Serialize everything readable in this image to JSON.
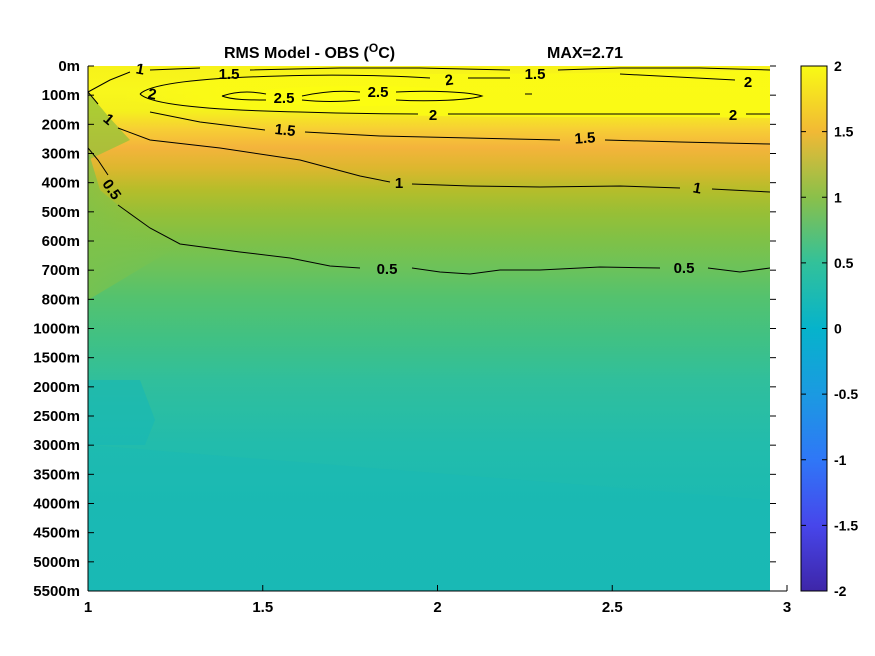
{
  "chart_data": {
    "type": "heatmap",
    "title": "RMS Model - OBS (",
    "title_unit": "O",
    "title_suffix": "C)",
    "max_label": "MAX=2.71",
    "xlim": [
      1,
      3
    ],
    "x_ticks": [
      "1",
      "1.5",
      "2",
      "2.5",
      "3"
    ],
    "x_tick_values": [
      1,
      1.5,
      2,
      2.5,
      3
    ],
    "y_ticks": [
      "0m",
      "100m",
      "200m",
      "300m",
      "400m",
      "500m",
      "600m",
      "700m",
      "800m",
      "1000m",
      "1500m",
      "2000m",
      "2500m",
      "3000m",
      "3500m",
      "4000m",
      "4500m",
      "5000m",
      "5500m"
    ],
    "colorbar": {
      "range": [
        -2,
        2
      ],
      "ticks": [
        "2",
        "1.5",
        "1",
        "0.5",
        "0",
        "-0.5",
        "-1",
        "-1.5",
        "-2"
      ],
      "tick_values": [
        2,
        1.5,
        1,
        0.5,
        0,
        -0.5,
        -1,
        -1.5,
        -2
      ],
      "colormap": "parula"
    },
    "contour_levels": [
      0.5,
      1,
      1.5,
      2,
      2.5
    ],
    "contour_labels": [
      {
        "text": "1",
        "x": 1.15,
        "depth": "0m"
      },
      {
        "text": "1.5",
        "x": 1.4,
        "depth": "0m"
      },
      {
        "text": "2",
        "x": 2.0,
        "depth": "0m"
      },
      {
        "text": "1.5",
        "x": 2.3,
        "depth": "0m"
      },
      {
        "text": "2",
        "x": 2.9,
        "depth": "100m"
      },
      {
        "text": "2",
        "x": 1.18,
        "depth": "100m"
      },
      {
        "text": "2.5",
        "x": 1.58,
        "depth": "100m"
      },
      {
        "text": "2.5",
        "x": 1.83,
        "depth": "100m"
      },
      {
        "text": "2",
        "x": 1.99,
        "depth": "200m"
      },
      {
        "text": "2",
        "x": 2.84,
        "depth": "200m"
      },
      {
        "text": "1",
        "x": 1.06,
        "depth": "200m"
      },
      {
        "text": "1.5",
        "x": 1.57,
        "depth": "200m"
      },
      {
        "text": "1.5",
        "x": 2.43,
        "depth": "200m"
      },
      {
        "text": "1",
        "x": 1.9,
        "depth": "400m"
      },
      {
        "text": "1",
        "x": 2.76,
        "depth": "400m"
      },
      {
        "text": "0.5",
        "x": 1.08,
        "depth": "400m"
      },
      {
        "text": "0.5",
        "x": 1.86,
        "depth": "700m"
      },
      {
        "text": "0.5",
        "x": 2.72,
        "depth": "700m"
      }
    ]
  }
}
